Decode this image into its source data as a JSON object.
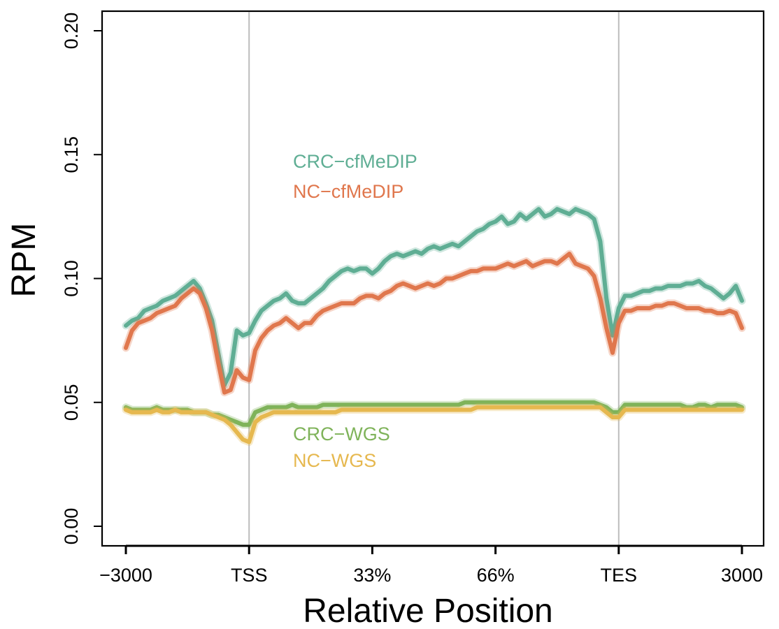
{
  "chart_data": {
    "type": "line",
    "xlabel": "Relative Position",
    "ylabel": "RPM",
    "xlim": [
      0,
      100
    ],
    "ylim": [
      0,
      0.2
    ],
    "x_ticks": [
      {
        "x": 0,
        "label": "−3000"
      },
      {
        "x": 20,
        "label": "TSS"
      },
      {
        "x": 40,
        "label": "33%"
      },
      {
        "x": 60,
        "label": "66%"
      },
      {
        "x": 80,
        "label": "TES"
      },
      {
        "x": 100,
        "label": "3000"
      }
    ],
    "y_ticks": [
      {
        "y": 0,
        "label": "0.00"
      },
      {
        "y": 0.05,
        "label": "0.05"
      },
      {
        "y": 0.1,
        "label": "0.10"
      },
      {
        "y": 0.15,
        "label": "0.15"
      },
      {
        "y": 0.2,
        "label": "0.20"
      }
    ],
    "vlines": [
      20,
      80
    ],
    "vline_color": "#bdbdbd",
    "grid": false,
    "legend_placement": "inline",
    "series": [
      {
        "name": "CRC−cfMeDIP",
        "color": "#5fae94",
        "x": [
          0,
          1,
          2,
          3,
          4,
          5,
          6,
          7,
          8,
          9,
          10,
          11,
          12,
          13,
          14,
          15,
          16,
          17,
          18,
          19,
          20,
          21,
          22,
          23,
          24,
          25,
          26,
          27,
          28,
          29,
          30,
          31,
          32,
          33,
          34,
          35,
          36,
          37,
          38,
          39,
          40,
          41,
          42,
          43,
          44,
          45,
          46,
          47,
          48,
          49,
          50,
          51,
          52,
          53,
          54,
          55,
          56,
          57,
          58,
          59,
          60,
          61,
          62,
          63,
          64,
          65,
          66,
          67,
          68,
          69,
          70,
          71,
          72,
          73,
          74,
          75,
          76,
          77,
          78,
          79,
          80,
          81,
          82,
          83,
          84,
          85,
          86,
          87,
          88,
          89,
          90,
          91,
          92,
          93,
          94,
          95,
          96,
          97,
          98,
          99,
          100
        ],
        "values": [
          0.081,
          0.083,
          0.084,
          0.087,
          0.088,
          0.089,
          0.091,
          0.092,
          0.093,
          0.095,
          0.097,
          0.099,
          0.096,
          0.09,
          0.083,
          0.07,
          0.057,
          0.062,
          0.079,
          0.077,
          0.078,
          0.083,
          0.087,
          0.089,
          0.091,
          0.092,
          0.094,
          0.091,
          0.09,
          0.09,
          0.092,
          0.094,
          0.096,
          0.099,
          0.101,
          0.103,
          0.104,
          0.103,
          0.104,
          0.104,
          0.102,
          0.104,
          0.107,
          0.109,
          0.11,
          0.109,
          0.11,
          0.111,
          0.11,
          0.112,
          0.113,
          0.112,
          0.113,
          0.114,
          0.113,
          0.115,
          0.117,
          0.119,
          0.12,
          0.122,
          0.123,
          0.125,
          0.122,
          0.123,
          0.126,
          0.124,
          0.126,
          0.128,
          0.125,
          0.126,
          0.128,
          0.127,
          0.126,
          0.128,
          0.127,
          0.126,
          0.124,
          0.115,
          0.092,
          0.077,
          0.088,
          0.093,
          0.093,
          0.094,
          0.095,
          0.095,
          0.096,
          0.096,
          0.097,
          0.097,
          0.097,
          0.098,
          0.098,
          0.099,
          0.097,
          0.096,
          0.094,
          0.092,
          0.094,
          0.097,
          0.091
        ]
      },
      {
        "name": "NC−cfMeDIP",
        "color": "#e0774d",
        "x": [
          0,
          1,
          2,
          3,
          4,
          5,
          6,
          7,
          8,
          9,
          10,
          11,
          12,
          13,
          14,
          15,
          16,
          17,
          18,
          19,
          20,
          21,
          22,
          23,
          24,
          25,
          26,
          27,
          28,
          29,
          30,
          31,
          32,
          33,
          34,
          35,
          36,
          37,
          38,
          39,
          40,
          41,
          42,
          43,
          44,
          45,
          46,
          47,
          48,
          49,
          50,
          51,
          52,
          53,
          54,
          55,
          56,
          57,
          58,
          59,
          60,
          61,
          62,
          63,
          64,
          65,
          66,
          67,
          68,
          69,
          70,
          71,
          72,
          73,
          74,
          75,
          76,
          77,
          78,
          79,
          80,
          81,
          82,
          83,
          84,
          85,
          86,
          87,
          88,
          89,
          90,
          91,
          92,
          93,
          94,
          95,
          96,
          97,
          98,
          99,
          100
        ],
        "values": [
          0.072,
          0.079,
          0.082,
          0.083,
          0.084,
          0.086,
          0.087,
          0.088,
          0.089,
          0.092,
          0.094,
          0.096,
          0.094,
          0.088,
          0.079,
          0.066,
          0.054,
          0.055,
          0.063,
          0.06,
          0.059,
          0.071,
          0.076,
          0.079,
          0.081,
          0.082,
          0.084,
          0.082,
          0.08,
          0.082,
          0.082,
          0.085,
          0.087,
          0.088,
          0.089,
          0.09,
          0.09,
          0.09,
          0.092,
          0.093,
          0.093,
          0.092,
          0.094,
          0.095,
          0.097,
          0.098,
          0.097,
          0.096,
          0.097,
          0.098,
          0.097,
          0.098,
          0.1,
          0.1,
          0.101,
          0.102,
          0.103,
          0.103,
          0.104,
          0.104,
          0.104,
          0.105,
          0.106,
          0.105,
          0.106,
          0.107,
          0.105,
          0.106,
          0.107,
          0.107,
          0.106,
          0.108,
          0.11,
          0.106,
          0.105,
          0.104,
          0.101,
          0.092,
          0.08,
          0.07,
          0.082,
          0.087,
          0.087,
          0.088,
          0.088,
          0.088,
          0.089,
          0.089,
          0.09,
          0.09,
          0.089,
          0.088,
          0.088,
          0.088,
          0.087,
          0.087,
          0.086,
          0.086,
          0.087,
          0.086,
          0.08
        ]
      },
      {
        "name": "CRC−WGS",
        "color": "#7fb35a",
        "x": [
          0,
          1,
          2,
          3,
          4,
          5,
          6,
          7,
          8,
          9,
          10,
          11,
          12,
          13,
          14,
          15,
          16,
          17,
          18,
          19,
          20,
          21,
          22,
          23,
          24,
          25,
          26,
          27,
          28,
          29,
          30,
          31,
          32,
          33,
          34,
          35,
          36,
          37,
          38,
          39,
          40,
          41,
          42,
          43,
          44,
          45,
          46,
          47,
          48,
          49,
          50,
          51,
          52,
          53,
          54,
          55,
          56,
          57,
          58,
          59,
          60,
          61,
          62,
          63,
          64,
          65,
          66,
          67,
          68,
          69,
          70,
          71,
          72,
          73,
          74,
          75,
          76,
          77,
          78,
          79,
          80,
          81,
          82,
          83,
          84,
          85,
          86,
          87,
          88,
          89,
          90,
          91,
          92,
          93,
          94,
          95,
          96,
          97,
          98,
          99,
          100
        ],
        "values": [
          0.048,
          0.047,
          0.047,
          0.047,
          0.047,
          0.048,
          0.047,
          0.047,
          0.047,
          0.047,
          0.047,
          0.046,
          0.046,
          0.046,
          0.045,
          0.045,
          0.044,
          0.043,
          0.042,
          0.041,
          0.041,
          0.046,
          0.047,
          0.048,
          0.048,
          0.048,
          0.048,
          0.049,
          0.048,
          0.048,
          0.048,
          0.048,
          0.049,
          0.049,
          0.049,
          0.049,
          0.049,
          0.049,
          0.049,
          0.049,
          0.049,
          0.049,
          0.049,
          0.049,
          0.049,
          0.049,
          0.049,
          0.049,
          0.049,
          0.049,
          0.049,
          0.049,
          0.049,
          0.049,
          0.049,
          0.05,
          0.05,
          0.05,
          0.05,
          0.05,
          0.05,
          0.05,
          0.05,
          0.05,
          0.05,
          0.05,
          0.05,
          0.05,
          0.05,
          0.05,
          0.05,
          0.05,
          0.05,
          0.05,
          0.05,
          0.05,
          0.05,
          0.049,
          0.048,
          0.046,
          0.046,
          0.049,
          0.049,
          0.049,
          0.049,
          0.049,
          0.049,
          0.049,
          0.049,
          0.049,
          0.049,
          0.048,
          0.048,
          0.049,
          0.049,
          0.048,
          0.049,
          0.049,
          0.049,
          0.049,
          0.048
        ]
      },
      {
        "name": "NC−WGS",
        "color": "#e6b84f",
        "x": [
          0,
          1,
          2,
          3,
          4,
          5,
          6,
          7,
          8,
          9,
          10,
          11,
          12,
          13,
          14,
          15,
          16,
          17,
          18,
          19,
          20,
          21,
          22,
          23,
          24,
          25,
          26,
          27,
          28,
          29,
          30,
          31,
          32,
          33,
          34,
          35,
          36,
          37,
          38,
          39,
          40,
          41,
          42,
          43,
          44,
          45,
          46,
          47,
          48,
          49,
          50,
          51,
          52,
          53,
          54,
          55,
          56,
          57,
          58,
          59,
          60,
          61,
          62,
          63,
          64,
          65,
          66,
          67,
          68,
          69,
          70,
          71,
          72,
          73,
          74,
          75,
          76,
          77,
          78,
          79,
          80,
          81,
          82,
          83,
          84,
          85,
          86,
          87,
          88,
          89,
          90,
          91,
          92,
          93,
          94,
          95,
          96,
          97,
          98,
          99,
          100
        ],
        "values": [
          0.047,
          0.046,
          0.046,
          0.046,
          0.046,
          0.047,
          0.046,
          0.046,
          0.047,
          0.046,
          0.046,
          0.046,
          0.046,
          0.046,
          0.045,
          0.044,
          0.043,
          0.041,
          0.038,
          0.035,
          0.034,
          0.042,
          0.044,
          0.045,
          0.046,
          0.046,
          0.046,
          0.046,
          0.046,
          0.046,
          0.046,
          0.046,
          0.046,
          0.046,
          0.046,
          0.047,
          0.047,
          0.047,
          0.047,
          0.047,
          0.047,
          0.047,
          0.047,
          0.047,
          0.047,
          0.047,
          0.047,
          0.047,
          0.047,
          0.047,
          0.047,
          0.047,
          0.047,
          0.047,
          0.047,
          0.047,
          0.047,
          0.048,
          0.048,
          0.048,
          0.048,
          0.048,
          0.048,
          0.048,
          0.048,
          0.048,
          0.048,
          0.048,
          0.048,
          0.048,
          0.048,
          0.048,
          0.048,
          0.048,
          0.048,
          0.048,
          0.048,
          0.048,
          0.046,
          0.044,
          0.044,
          0.047,
          0.047,
          0.047,
          0.047,
          0.047,
          0.047,
          0.047,
          0.047,
          0.047,
          0.047,
          0.047,
          0.047,
          0.047,
          0.047,
          0.047,
          0.047,
          0.047,
          0.047,
          0.047,
          0.047
        ]
      }
    ]
  }
}
